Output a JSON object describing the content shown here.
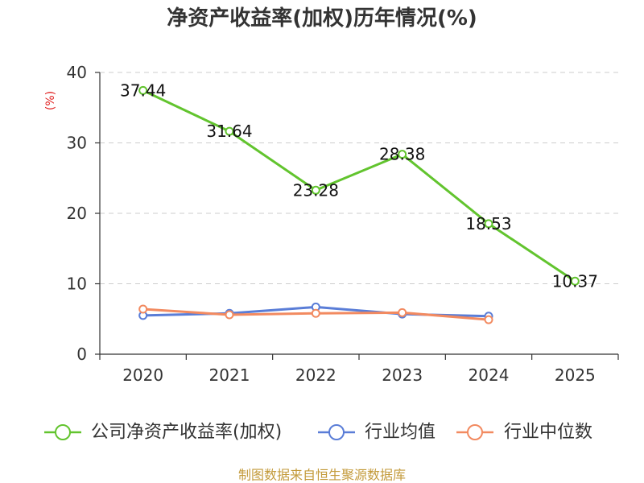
{
  "chart_data": {
    "type": "line",
    "title": "净资产收益率(加权)历年情况(%)",
    "xlabel": "",
    "ylabel": "(%)",
    "categories": [
      "2020",
      "2021",
      "2022",
      "2023",
      "2024",
      "2025"
    ],
    "ylim": [
      0,
      40
    ],
    "yticks": [
      0,
      10,
      20,
      30,
      40
    ],
    "grid": true,
    "legend": "bottom",
    "series": [
      {
        "name": "公司净资产收益率(加权)",
        "color": "#62c42e",
        "values": [
          37.44,
          31.64,
          23.28,
          28.38,
          18.53,
          10.37
        ],
        "show_labels": true
      },
      {
        "name": "行业均值",
        "color": "#5a7dd7",
        "values": [
          5.5,
          5.8,
          6.7,
          5.7,
          5.4,
          null
        ],
        "show_labels": false
      },
      {
        "name": "行业中位数",
        "color": "#f28a60",
        "values": [
          6.4,
          5.6,
          5.8,
          5.9,
          4.9,
          null
        ],
        "show_labels": false
      }
    ]
  },
  "footer": {
    "source": "制图数据来自恒生聚源数据库"
  },
  "colors": {
    "ylabel": "#e02020",
    "footer": "#c39a3a"
  }
}
